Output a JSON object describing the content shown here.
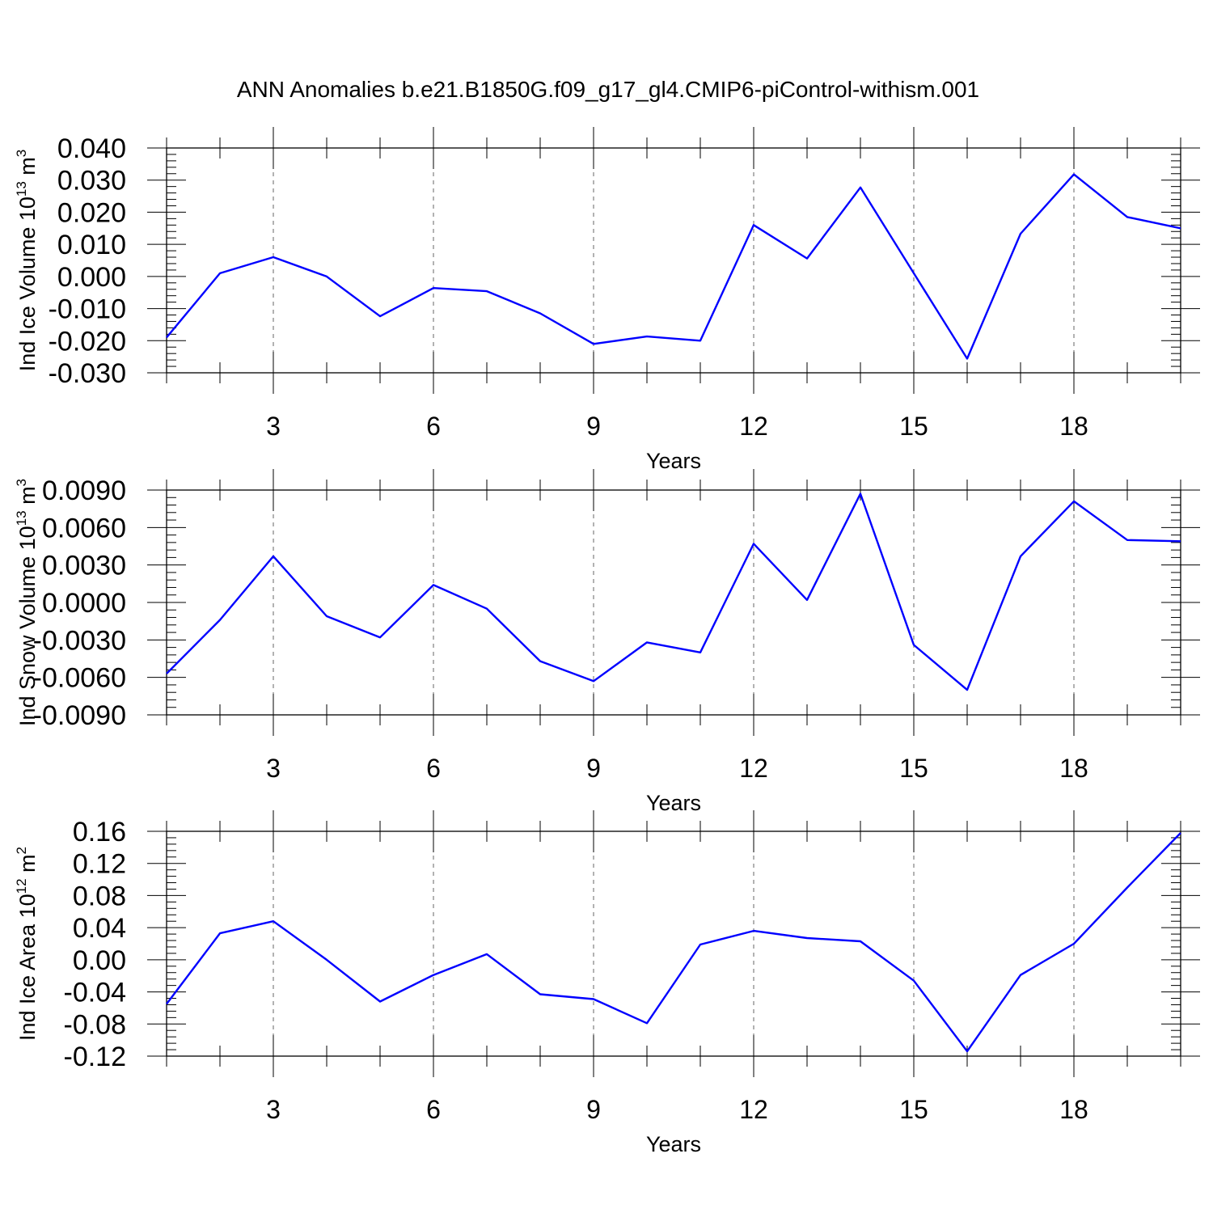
{
  "title": "ANN Anomalies b.e21.B1850G.f09_g17_gl4.CMIP6-piControl-withism.001",
  "line_color": "#0000ff",
  "chart_data": [
    {
      "type": "line",
      "ylabel": {
        "main": "Ind Ice Volume 10",
        "exp": "13",
        "unit": " m",
        "unit_exp": "3"
      },
      "xlabel": "Years",
      "xlim": [
        1,
        20
      ],
      "ylim": [
        -0.03,
        0.04
      ],
      "yticks": [
        -0.03,
        -0.02,
        -0.01,
        0.0,
        0.01,
        0.02,
        0.03,
        0.04
      ],
      "ytick_labels": [
        "-0.030",
        "-0.020",
        "-0.010",
        "0.000",
        "0.010",
        "0.020",
        "0.030",
        "0.040"
      ],
      "xticks": [
        3,
        6,
        9,
        12,
        15,
        18
      ],
      "xtick_labels": [
        "3",
        "6",
        "9",
        "12",
        "15",
        "18"
      ],
      "x": [
        1,
        2,
        3,
        4,
        5,
        6,
        7,
        8,
        9,
        10,
        11,
        12,
        13,
        14,
        15,
        16,
        17,
        18,
        19,
        20
      ],
      "values": [
        -0.019,
        0.001,
        0.006,
        0.0,
        -0.0124,
        -0.0036,
        -0.0046,
        -0.0115,
        -0.021,
        -0.0187,
        -0.02,
        0.016,
        0.0056,
        0.0277,
        0.001,
        -0.0256,
        0.0133,
        0.0318,
        0.0185,
        0.015
      ]
    },
    {
      "type": "line",
      "ylabel": {
        "main": "Ind Snow Volume 10",
        "exp": "13",
        "unit": " m",
        "unit_exp": "3"
      },
      "xlabel": "Years",
      "xlim": [
        1,
        20
      ],
      "ylim": [
        -0.009,
        0.009
      ],
      "yticks": [
        -0.009,
        -0.006,
        -0.003,
        0.0,
        0.003,
        0.006,
        0.009
      ],
      "ytick_labels": [
        "-0.0090",
        "-0.0060",
        "-0.0030",
        "0.0000",
        "0.0030",
        "0.0060",
        "0.0090"
      ],
      "xticks": [
        3,
        6,
        9,
        12,
        15,
        18
      ],
      "xtick_labels": [
        "3",
        "6",
        "9",
        "12",
        "15",
        "18"
      ],
      "x": [
        1,
        2,
        3,
        4,
        5,
        6,
        7,
        8,
        9,
        10,
        11,
        12,
        13,
        14,
        15,
        16,
        17,
        18,
        19,
        20
      ],
      "values": [
        -0.0057,
        -0.0014,
        0.0037,
        -0.0011,
        -0.0028,
        0.0014,
        -0.0005,
        -0.0047,
        -0.0063,
        -0.0032,
        -0.004,
        0.0047,
        0.0002,
        0.0087,
        -0.0034,
        -0.007,
        0.0037,
        0.0081,
        0.005,
        0.0049
      ]
    },
    {
      "type": "line",
      "ylabel": {
        "main": "Ind Ice Area 10",
        "exp": "12",
        "unit": " m",
        "unit_exp": "2"
      },
      "xlabel": "Years",
      "xlim": [
        1,
        20
      ],
      "ylim": [
        -0.12,
        0.16
      ],
      "yticks": [
        -0.12,
        -0.08,
        -0.04,
        0.0,
        0.04,
        0.08,
        0.12,
        0.16
      ],
      "ytick_labels": [
        "-0.12",
        "-0.08",
        "-0.04",
        "0.00",
        "0.04",
        "0.08",
        "0.12",
        "0.16"
      ],
      "xticks": [
        3,
        6,
        9,
        12,
        15,
        18
      ],
      "xtick_labels": [
        "3",
        "6",
        "9",
        "12",
        "15",
        "18"
      ],
      "x": [
        1,
        2,
        3,
        4,
        5,
        6,
        7,
        8,
        9,
        10,
        11,
        12,
        13,
        14,
        15,
        16,
        17,
        18,
        19,
        20
      ],
      "values": [
        -0.055,
        0.033,
        0.048,
        0.0,
        -0.052,
        -0.019,
        0.007,
        -0.043,
        -0.049,
        -0.079,
        0.019,
        0.036,
        0.027,
        0.023,
        -0.026,
        -0.114,
        -0.019,
        0.02,
        0.09,
        0.158
      ]
    }
  ]
}
